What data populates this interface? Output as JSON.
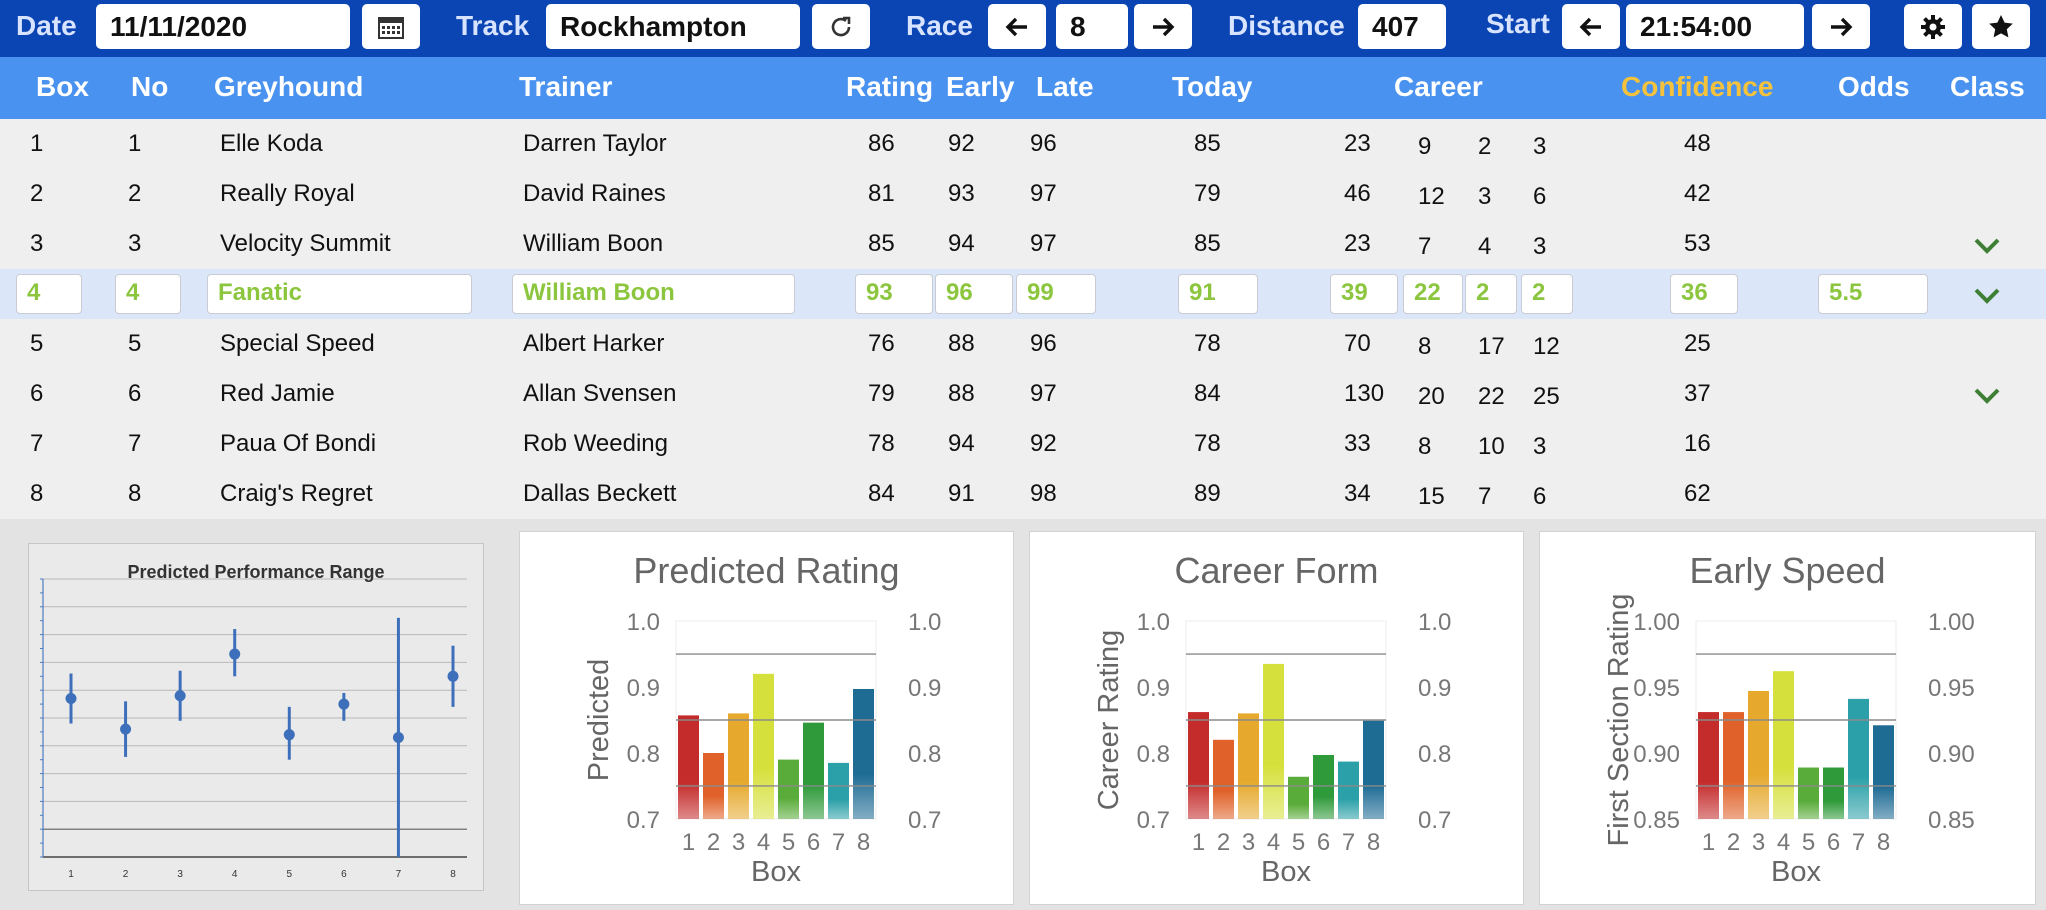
{
  "toolbar": {
    "date_label": "Date",
    "date_value": "11/11/2020",
    "track_label": "Track",
    "track_value": "Rockhampton",
    "race_label": "Race",
    "race_value": "8",
    "distance_label": "Distance",
    "distance_value": "407",
    "start_label": "Start",
    "start_value": "21:54:00",
    "icons": [
      "calendar-icon",
      "refresh-icon",
      "arrow-left-icon",
      "arrow-right-icon",
      "gear-icon",
      "star-icon"
    ]
  },
  "columns": {
    "box": "Box",
    "no": "No",
    "greyhound": "Greyhound",
    "trainer": "Trainer",
    "rating": "Rating",
    "early": "Early",
    "late": "Late",
    "today": "Today",
    "career": "Career",
    "confidence": "Confidence",
    "odds": "Odds",
    "class": "Class"
  },
  "rows": [
    {
      "box": "1",
      "no": "1",
      "greyhound": "Elle Koda",
      "trainer": "Darren Taylor",
      "rating": "86",
      "early": "92",
      "late": "96",
      "today": "85",
      "c1": "23",
      "c2": "9",
      "c3": "2",
      "c4": "3",
      "confidence": "48",
      "odds": "",
      "class_check": false
    },
    {
      "box": "2",
      "no": "2",
      "greyhound": "Really Royal",
      "trainer": "David Raines",
      "rating": "81",
      "early": "93",
      "late": "97",
      "today": "79",
      "c1": "46",
      "c2": "12",
      "c3": "3",
      "c4": "6",
      "confidence": "42",
      "odds": "",
      "class_check": false
    },
    {
      "box": "3",
      "no": "3",
      "greyhound": "Velocity Summit",
      "trainer": "William Boon",
      "rating": "85",
      "early": "94",
      "late": "97",
      "today": "85",
      "c1": "23",
      "c2": "7",
      "c3": "4",
      "c4": "3",
      "confidence": "53",
      "odds": "",
      "class_check": true
    },
    {
      "box": "4",
      "no": "4",
      "greyhound": "Fanatic",
      "trainer": "William Boon",
      "rating": "93",
      "early": "96",
      "late": "99",
      "today": "91",
      "c1": "39",
      "c2": "22",
      "c3": "2",
      "c4": "2",
      "confidence": "36",
      "odds": "5.5",
      "class_check": true,
      "selected": true
    },
    {
      "box": "5",
      "no": "5",
      "greyhound": "Special Speed",
      "trainer": "Albert Harker",
      "rating": "76",
      "early": "88",
      "late": "96",
      "today": "78",
      "c1": "70",
      "c2": "8",
      "c3": "17",
      "c4": "12",
      "confidence": "25",
      "odds": "",
      "class_check": false
    },
    {
      "box": "6",
      "no": "6",
      "greyhound": "Red Jamie",
      "trainer": "Allan Svensen",
      "rating": "79",
      "early": "88",
      "late": "97",
      "today": "84",
      "c1": "130",
      "c2": "20",
      "c3": "22",
      "c4": "25",
      "confidence": "37",
      "odds": "",
      "class_check": true
    },
    {
      "box": "7",
      "no": "7",
      "greyhound": "Paua Of Bondi",
      "trainer": "Rob Weeding",
      "rating": "78",
      "early": "94",
      "late": "92",
      "today": "78",
      "c1": "33",
      "c2": "8",
      "c3": "10",
      "c4": "3",
      "confidence": "16",
      "odds": "",
      "class_check": false
    },
    {
      "box": "8",
      "no": "8",
      "greyhound": "Craig's Regret",
      "trainer": "Dallas Beckett",
      "rating": "84",
      "early": "91",
      "late": "98",
      "today": "89",
      "c1": "34",
      "c2": "15",
      "c3": "7",
      "c4": "6",
      "confidence": "62",
      "odds": "",
      "class_check": false
    }
  ],
  "colors": {
    "toolbar_bg": "#0b44b3",
    "header_bg": "#4a92f0",
    "confidence_header": "#f5c33b",
    "selected_text": "#8cc63f",
    "check": "#3f7f35",
    "bar_colors": [
      "#c42b2b",
      "#e0622a",
      "#e6a92e",
      "#d6e03c",
      "#5aac3a",
      "#2f9a3a",
      "#2ba0a8",
      "#1e6b94"
    ]
  },
  "chart_data": [
    {
      "type": "scatter",
      "title": "Predicted Performance Range",
      "categories": [
        "1",
        "2",
        "3",
        "4",
        "5",
        "6",
        "7",
        "8"
      ],
      "values": [
        0.57,
        0.46,
        0.58,
        0.73,
        0.44,
        0.55,
        0.43,
        0.65
      ],
      "low": [
        0.48,
        0.36,
        0.49,
        0.65,
        0.35,
        0.49,
        0.0,
        0.54
      ],
      "high": [
        0.66,
        0.56,
        0.67,
        0.82,
        0.54,
        0.59,
        0.86,
        0.76
      ],
      "ylim": [
        0,
        1
      ],
      "grid": true,
      "ylabel": "",
      "xlabel": ""
    },
    {
      "type": "bar",
      "title": "Predicted Rating",
      "categories": [
        "1",
        "2",
        "3",
        "4",
        "5",
        "6",
        "7",
        "8"
      ],
      "values": [
        0.857,
        0.8,
        0.86,
        0.92,
        0.79,
        0.846,
        0.785,
        0.897
      ],
      "ylim": [
        0.7,
        1.0
      ],
      "yticks": [
        "1.0",
        "0.9",
        "0.8",
        "0.7"
      ],
      "ylabel": "Predicted",
      "xlabel": "Box"
    },
    {
      "type": "bar",
      "title": "Career Form",
      "categories": [
        "1",
        "2",
        "3",
        "4",
        "5",
        "6",
        "7",
        "8"
      ],
      "values": [
        0.862,
        0.82,
        0.86,
        0.935,
        0.764,
        0.797,
        0.787,
        0.849
      ],
      "ylim": [
        0.7,
        1.0
      ],
      "yticks": [
        "1.0",
        "0.9",
        "0.8",
        "0.7"
      ],
      "ylabel": "Career Rating",
      "xlabel": "Box"
    },
    {
      "type": "bar",
      "title": "Early Speed",
      "categories": [
        "1",
        "2",
        "3",
        "4",
        "5",
        "6",
        "7",
        "8"
      ],
      "values": [
        0.931,
        0.931,
        0.947,
        0.962,
        0.889,
        0.889,
        0.941,
        0.921
      ],
      "ylim": [
        0.85,
        1.0
      ],
      "yticks": [
        "1.00",
        "0.95",
        "0.90",
        "0.85"
      ],
      "ylabel": "First Section Rating",
      "xlabel": "Box"
    }
  ]
}
